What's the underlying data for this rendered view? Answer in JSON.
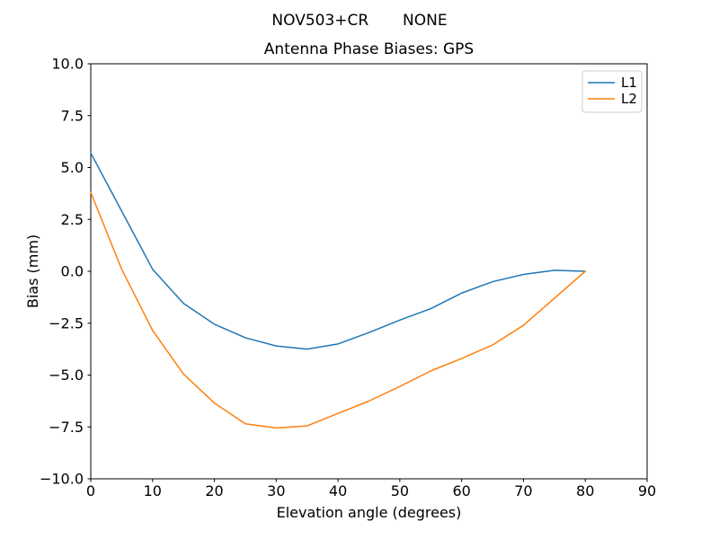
{
  "figure": {
    "suptitle": "NOV503+CR       NONE",
    "background": "#ffffff"
  },
  "chart_data": {
    "type": "line",
    "title": "Antenna Phase Biases: GPS",
    "xlabel": "Elevation angle (degrees)",
    "ylabel": "Bias (mm)",
    "xlim": [
      0,
      90
    ],
    "ylim": [
      -10,
      10
    ],
    "x_ticks": [
      0,
      10,
      20,
      30,
      40,
      50,
      60,
      70,
      80,
      90
    ],
    "y_ticks": [
      10.0,
      7.5,
      5.0,
      2.5,
      0.0,
      -2.5,
      -5.0,
      -7.5,
      -10.0
    ],
    "grid": false,
    "legend_position": "upper right",
    "x": [
      0,
      5,
      10,
      15,
      20,
      25,
      30,
      35,
      40,
      45,
      50,
      55,
      60,
      65,
      70,
      75,
      80
    ],
    "series": [
      {
        "name": "L1",
        "color": "#1f77b4",
        "values": [
          5.7,
          2.9,
          0.1,
          -1.55,
          -2.55,
          -3.2,
          -3.6,
          -3.75,
          -3.5,
          -2.95,
          -2.35,
          -1.8,
          -1.05,
          -0.5,
          -0.15,
          0.05,
          0.0
        ]
      },
      {
        "name": "L2",
        "color": "#ff7f0e",
        "values": [
          3.8,
          0.1,
          -2.85,
          -4.95,
          -6.35,
          -7.35,
          -7.55,
          -7.45,
          -6.85,
          -6.25,
          -5.55,
          -4.8,
          -4.2,
          -3.55,
          -2.6,
          -1.3,
          0.0
        ]
      }
    ],
    "axis_color": "#000000",
    "legend_border_color": "#cccccc"
  }
}
